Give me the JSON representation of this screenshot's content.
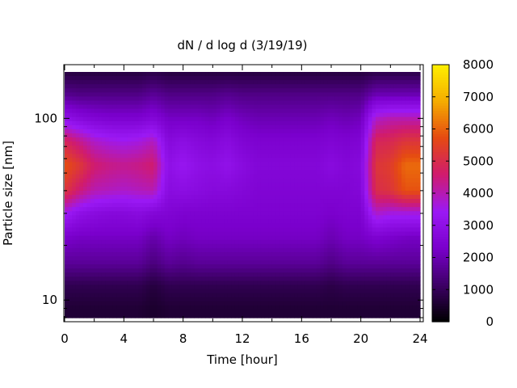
{
  "chart_data": {
    "type": "heatmap",
    "title": "dN / d log d (3/19/19)",
    "xlabel": "Time [hour]",
    "ylabel": "Particle size [nm]",
    "xlim": [
      0,
      24
    ],
    "x_ticks": [
      0,
      4,
      8,
      12,
      16,
      20,
      24
    ],
    "ylim": [
      8,
      180
    ],
    "y_scale": "log",
    "y_ticks": [
      10,
      100
    ],
    "colorbar": {
      "range": [
        0,
        8000
      ],
      "ticks": [
        0,
        1000,
        2000,
        3000,
        4000,
        5000,
        6000,
        7000,
        8000
      ],
      "palette": [
        "#000000",
        "#3d0066",
        "#7a00cc",
        "#9b19f5",
        "#d01b6e",
        "#e54a12",
        "#f5ac00",
        "#fff000"
      ]
    },
    "x": [
      0,
      1,
      2,
      3,
      4,
      5,
      6,
      7,
      8,
      9,
      10,
      11,
      12,
      13,
      14,
      15,
      16,
      17,
      18,
      19,
      20,
      21,
      22,
      23
    ],
    "y": [
      9,
      12,
      16,
      22,
      30,
      40,
      55,
      75,
      100,
      135,
      180
    ],
    "z": [
      [
        600,
        600,
        600,
        600,
        600,
        600,
        500,
        600,
        600,
        600,
        600,
        600,
        600,
        600,
        600,
        600,
        600,
        600,
        600,
        600,
        600,
        600,
        600,
        600
      ],
      [
        900,
        900,
        900,
        900,
        900,
        900,
        700,
        900,
        900,
        900,
        900,
        900,
        900,
        900,
        900,
        900,
        900,
        900,
        800,
        900,
        900,
        900,
        900,
        900
      ],
      [
        1700,
        1700,
        1700,
        1700,
        1700,
        1700,
        1400,
        1700,
        1600,
        1700,
        1700,
        1700,
        1700,
        1700,
        1700,
        1700,
        1700,
        1700,
        1500,
        1700,
        1700,
        1700,
        1700,
        1700
      ],
      [
        2300,
        2200,
        2200,
        2200,
        2200,
        2200,
        1900,
        2200,
        2100,
        2200,
        2200,
        2200,
        2200,
        2200,
        2200,
        2200,
        2200,
        2200,
        2000,
        2200,
        2200,
        2400,
        2300,
        2200
      ],
      [
        3500,
        3000,
        2800,
        2700,
        2700,
        2800,
        2600,
        2500,
        2400,
        2400,
        2400,
        2400,
        2400,
        2400,
        2400,
        2400,
        2400,
        2400,
        2300,
        2400,
        2400,
        3800,
        3600,
        3600
      ],
      [
        5200,
        4500,
        4000,
        3900,
        3800,
        3900,
        4000,
        2800,
        2900,
        2800,
        2700,
        2700,
        2600,
        2500,
        2500,
        2500,
        2500,
        2500,
        2500,
        2500,
        2600,
        5000,
        5200,
        5800
      ],
      [
        5800,
        5300,
        4600,
        4400,
        4300,
        4400,
        4600,
        3000,
        3300,
        3000,
        2900,
        3100,
        2800,
        2600,
        2600,
        2600,
        2600,
        2600,
        2800,
        2600,
        2700,
        5200,
        5400,
        6100
      ],
      [
        4800,
        4300,
        3800,
        3600,
        3500,
        3600,
        3900,
        2700,
        2900,
        2700,
        2600,
        2800,
        2500,
        2400,
        2400,
        2400,
        2400,
        2400,
        2500,
        2400,
        2500,
        4800,
        4900,
        5200
      ],
      [
        3000,
        2700,
        2500,
        2400,
        2400,
        2400,
        2600,
        2200,
        2200,
        2200,
        2100,
        2300,
        2100,
        2000,
        2000,
        2000,
        2000,
        2000,
        2100,
        2000,
        2100,
        3800,
        4000,
        4000
      ],
      [
        1600,
        1500,
        1500,
        1500,
        1500,
        1500,
        1700,
        1500,
        1500,
        1500,
        1500,
        1600,
        1500,
        1500,
        1500,
        1500,
        1500,
        1500,
        1500,
        1500,
        1500,
        2000,
        2000,
        2000
      ],
      [
        700,
        700,
        700,
        700,
        700,
        700,
        800,
        700,
        700,
        700,
        700,
        700,
        700,
        700,
        700,
        700,
        700,
        700,
        700,
        700,
        700,
        800,
        800,
        800
      ]
    ],
    "grid": false,
    "legend": "colorbar-right"
  }
}
